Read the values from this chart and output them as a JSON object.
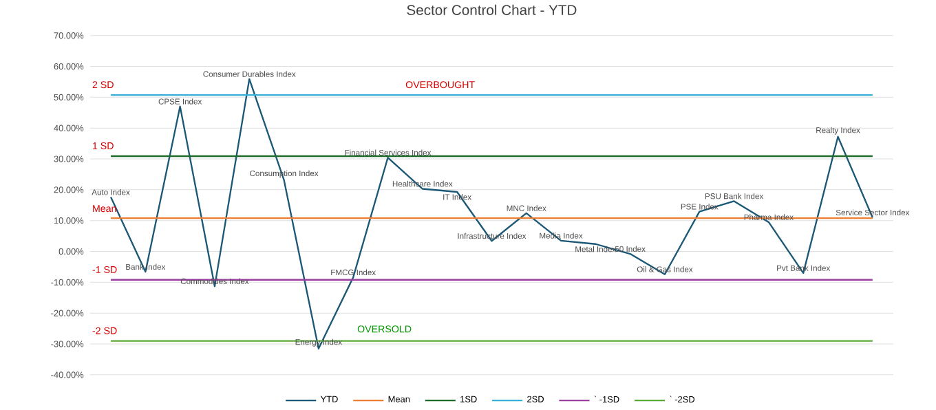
{
  "chart_data": {
    "type": "line",
    "title": "Sector Control Chart - YTD",
    "categories": [
      "Auto Index",
      "Bank Index",
      "CPSE Index",
      "Commodities Index",
      "Consumer Durables Index",
      "Consumption Index",
      "Energy Index",
      "FMCG Index",
      "Financial Services Index",
      "Healthcare Index",
      "IT Index",
      "Infrastructure Index",
      "MNC Index",
      "Media Index",
      "Metal Index",
      "50 Index",
      "Oil & Gas Index",
      "PSE Index",
      "PSU Bank Index",
      "Pharma Index",
      "Pvt Bank Index",
      "Realty Index",
      "Service Sector Index"
    ],
    "series": [
      {
        "name": "YTD",
        "color": "#1b5876",
        "values": [
          17.6,
          -6.6,
          47,
          -11.3,
          55.9,
          23.2,
          -31.5,
          -8.4,
          30.4,
          20.3,
          19.3,
          3.4,
          12.4,
          3.5,
          2.4,
          -0.8,
          -7.4,
          12.9,
          16.3,
          9.5,
          -7.0,
          37.2,
          11.0
        ]
      },
      {
        "name": "Mean",
        "color": "#ed7d31",
        "values": [
          10.8,
          10.8,
          10.8,
          10.8,
          10.8,
          10.8,
          10.8,
          10.8,
          10.8,
          10.8,
          10.8,
          10.8,
          10.8,
          10.8,
          10.8,
          10.8,
          10.8,
          10.8,
          10.8,
          10.8,
          10.8,
          10.8,
          10.8
        ]
      },
      {
        "name": "1SD",
        "color": "#1e6b2a",
        "values": [
          30.9,
          30.9,
          30.9,
          30.9,
          30.9,
          30.9,
          30.9,
          30.9,
          30.9,
          30.9,
          30.9,
          30.9,
          30.9,
          30.9,
          30.9,
          30.9,
          30.9,
          30.9,
          30.9,
          30.9,
          30.9,
          30.9,
          30.9
        ]
      },
      {
        "name": "2SD",
        "color": "#35b0d6",
        "values": [
          50.7,
          50.7,
          50.7,
          50.7,
          50.7,
          50.7,
          50.7,
          50.7,
          50.7,
          50.7,
          50.7,
          50.7,
          50.7,
          50.7,
          50.7,
          50.7,
          50.7,
          50.7,
          50.7,
          50.7,
          50.7,
          50.7,
          50.7
        ]
      },
      {
        "name": "` -1SD",
        "color": "#9b3fa0",
        "values": [
          -9.2,
          -9.2,
          -9.2,
          -9.2,
          -9.2,
          -9.2,
          -9.2,
          -9.2,
          -9.2,
          -9.2,
          -9.2,
          -9.2,
          -9.2,
          -9.2,
          -9.2,
          -9.2,
          -9.2,
          -9.2,
          -9.2,
          -9.2,
          -9.2,
          -9.2,
          -9.2
        ]
      },
      {
        "name": "` -2SD",
        "color": "#5aaa3a",
        "values": [
          -29.0,
          -29.0,
          -29.0,
          -29.0,
          -29.0,
          -29.0,
          -29.0,
          -29.0,
          -29.0,
          -29.0,
          -29.0,
          -29.0,
          -29.0,
          -29.0,
          -29.0,
          -29.0,
          -29.0,
          -29.0,
          -29.0,
          -29.0,
          -29.0,
          -29.0,
          -29.0
        ]
      }
    ],
    "ylim": [
      -40,
      70
    ],
    "yticks": [
      {
        "value": -40,
        "label": "-40.00%"
      },
      {
        "value": -30,
        "label": "-30.00%"
      },
      {
        "value": -20,
        "label": "-20.00%"
      },
      {
        "value": -10,
        "label": "-10.00%"
      },
      {
        "value": 0,
        "label": "0.00%"
      },
      {
        "value": 10,
        "label": "10.00%"
      },
      {
        "value": 20,
        "label": "20.00%"
      },
      {
        "value": 30,
        "label": "30.00%"
      },
      {
        "value": 40,
        "label": "40.00%"
      },
      {
        "value": 50,
        "label": "50.00%"
      },
      {
        "value": 60,
        "label": "60.00%"
      },
      {
        "value": 70,
        "label": "70.00%"
      }
    ],
    "annotations": [
      "2 SD",
      "1 SD",
      "Mean",
      "-1 SD",
      "-2 SD",
      "OVERBOUGHT",
      "OVERSOLD"
    ],
    "grid": "y",
    "legend": "bottom",
    "tick_labels": "y"
  }
}
